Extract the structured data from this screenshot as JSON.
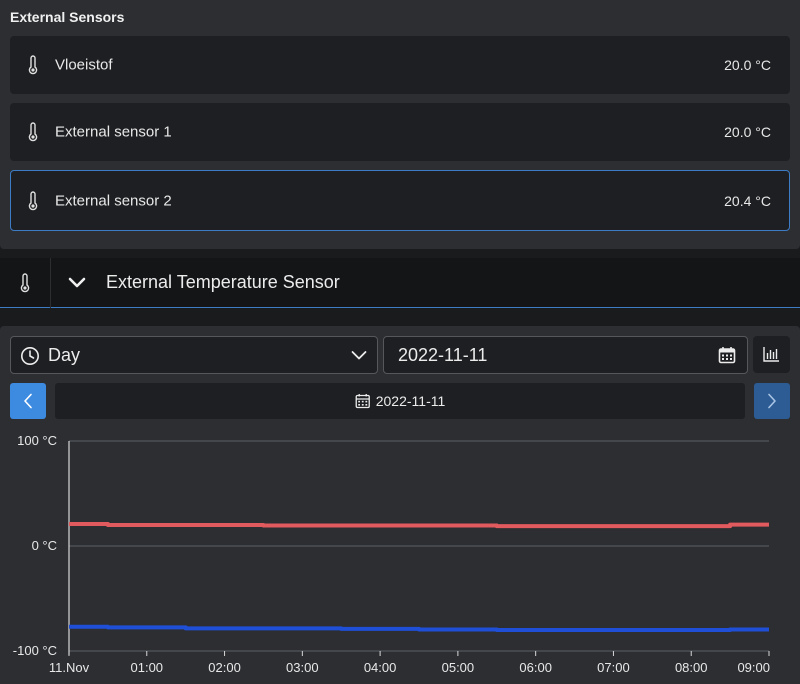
{
  "external_sensors": {
    "title": "External Sensors",
    "items": [
      {
        "name": "Vloeistof",
        "value": "20.0 °C"
      },
      {
        "name": "External sensor 1",
        "value": "20.0 °C"
      },
      {
        "name": "External sensor 2",
        "value": "20.4 °C"
      }
    ]
  },
  "header": {
    "title": "External Temperature Sensor"
  },
  "controls": {
    "period_value": "Day",
    "date_value": "2022-11-11",
    "current_date_label": "2022-11-11"
  },
  "colors": {
    "accent": "#3d8be0",
    "series_red": "#e05a5e",
    "series_blue": "#1f4fd6"
  },
  "chart_data": {
    "type": "line",
    "y_ticks": [
      "100 °C",
      "0 °C",
      "-100 °C"
    ],
    "x_ticks": [
      "11.Nov",
      "01:00",
      "02:00",
      "03:00",
      "04:00",
      "05:00",
      "06:00",
      "07:00",
      "08:00",
      "09:00"
    ],
    "ylim": [
      -100,
      100
    ],
    "xlim": [
      0,
      9
    ],
    "grid": true,
    "series": [
      {
        "color": "#e05a5e",
        "points": [
          [
            0,
            21
          ],
          [
            0.5,
            21
          ],
          [
            0.5,
            20
          ],
          [
            2.5,
            20
          ],
          [
            2.5,
            19.5
          ],
          [
            5.5,
            19.5
          ],
          [
            5.5,
            19
          ],
          [
            8.5,
            19
          ],
          [
            8.5,
            20.4
          ],
          [
            9,
            20.4
          ]
        ]
      },
      {
        "color": "#1f4fd6",
        "points": [
          [
            0,
            -77
          ],
          [
            0.5,
            -77
          ],
          [
            0.5,
            -77.5
          ],
          [
            1.5,
            -77.5
          ],
          [
            1.5,
            -78.5
          ],
          [
            3.5,
            -78.5
          ],
          [
            3.5,
            -79
          ],
          [
            4.5,
            -79
          ],
          [
            4.5,
            -79.5
          ],
          [
            5.5,
            -79.5
          ],
          [
            5.5,
            -80
          ],
          [
            8.5,
            -80
          ],
          [
            8.5,
            -79.5
          ],
          [
            9,
            -79.5
          ]
        ]
      }
    ]
  }
}
